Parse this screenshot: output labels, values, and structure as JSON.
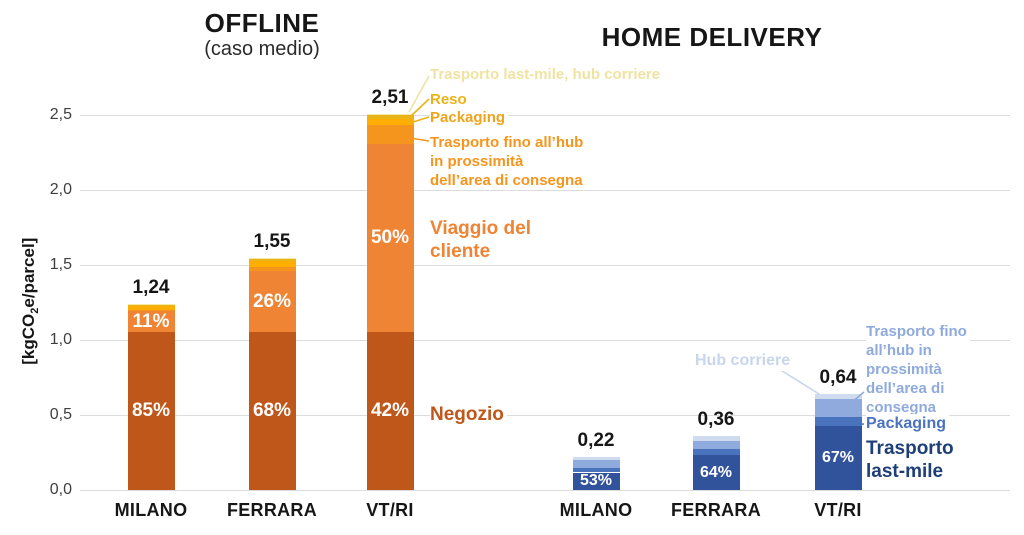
{
  "y_axis": {
    "label_prefix": "[kgCO",
    "label_sub": "2",
    "label_suffix": "e/parcel]",
    "ticks": [
      {
        "label": "2,5",
        "value": 2.5
      },
      {
        "label": "2,0",
        "value": 2.0
      },
      {
        "label": "1,5",
        "value": 1.5
      },
      {
        "label": "1,0",
        "value": 1.0
      },
      {
        "label": "0,5",
        "value": 0.5
      },
      {
        "label": "0,0",
        "value": 0.0
      }
    ]
  },
  "chart_data": {
    "type": "bar",
    "stacked": true,
    "unit": "kgCO2e/parcel",
    "ylim": [
      0,
      2.5
    ],
    "grid": true,
    "charts": [
      {
        "title": "OFFLINE",
        "subtitle": "(caso medio)",
        "categories": [
          "MILANO",
          "FERRARA",
          "VT/RI"
        ],
        "totals": [
          1.24,
          1.55,
          2.51
        ],
        "total_labels": [
          "1,24",
          "1,55",
          "2,51"
        ],
        "series": [
          {
            "name": "Negozio",
            "color": "#C0571A",
            "fractions": [
              0.85,
              0.68,
              0.42
            ],
            "pct_labels": [
              "85%",
              "68%",
              "42%"
            ]
          },
          {
            "name": "Viaggio del cliente",
            "color": "#EE8434",
            "fractions": [
              0.11,
              0.26,
              0.5
            ],
            "pct_labels": [
              "11%",
              "26%",
              "50%"
            ]
          },
          {
            "name": "Trasporto fino all’hub in prossimità dell’area di consegna",
            "color": "#F6951D",
            "fractions": [
              0.01,
              0.02,
              0.05
            ],
            "pct_labels": [
              "",
              "",
              ""
            ]
          },
          {
            "name": "Packaging",
            "color": "#FFAE00",
            "fractions": [
              0.02,
              0.025,
              0.015
            ],
            "pct_labels": [
              "",
              "",
              ""
            ]
          },
          {
            "name": "Reso",
            "color": "#E9B417",
            "fractions": [
              0.005,
              0.01,
              0.01
            ],
            "pct_labels": [
              "",
              "",
              ""
            ]
          },
          {
            "name": "Trasporto last-mile, hub corriere",
            "color": "#F5E9A8",
            "fractions": [
              0.005,
              0.005,
              0.005
            ],
            "pct_labels": [
              "",
              "",
              ""
            ]
          }
        ]
      },
      {
        "title": "HOME DELIVERY",
        "subtitle": "",
        "categories": [
          "MILANO",
          "FERRARA",
          "VT/RI"
        ],
        "totals": [
          0.22,
          0.36,
          0.64
        ],
        "total_labels": [
          "0,22",
          "0,36",
          "0,64"
        ],
        "series": [
          {
            "name": "Trasporto last-mile",
            "color": "#31539B",
            "fractions": [
              0.53,
              0.64,
              0.67
            ],
            "pct_labels": [
              "53%",
              "64%",
              "67%"
            ]
          },
          {
            "name": "Packaging",
            "color": "#4A73BE",
            "fractions": [
              0.14,
              0.12,
              0.09
            ],
            "pct_labels": [
              "",
              "",
              ""
            ]
          },
          {
            "name": "Trasporto fino all’hub in prossimità dell’area di consegna",
            "color": "#8FAADC",
            "fractions": [
              0.23,
              0.15,
              0.19
            ],
            "pct_labels": [
              "",
              "",
              ""
            ]
          },
          {
            "name": "Hub corriere",
            "color": "#CFDCF0",
            "fractions": [
              0.1,
              0.09,
              0.05
            ],
            "pct_labels": [
              "",
              "",
              ""
            ]
          }
        ]
      }
    ]
  },
  "annotations": {
    "offline": {
      "lastmile_hub": "Trasporto last-mile, hub corriere",
      "reso": "Reso",
      "packaging": "Packaging",
      "trasporto_hub_l1": "Trasporto fino all’hub",
      "trasporto_hub_l2": "in prossimità",
      "trasporto_hub_l3": "dell’area di consegna",
      "viaggio_l1": "Viaggio del",
      "viaggio_l2": "cliente",
      "negozio": "Negozio"
    },
    "home": {
      "hub_corriere": "Hub corriere",
      "trasporto_hub_l1": "Trasporto fino",
      "trasporto_hub_l2": "all’hub in",
      "trasporto_hub_l3": "prossimità",
      "trasporto_hub_l4": "dell’area di",
      "trasporto_hub_l5": "consegna",
      "packaging": "Packaging",
      "lastmile_l1": "Trasporto",
      "lastmile_l2": "last-mile"
    }
  },
  "palette": {
    "negozio": "#C0571A",
    "viaggio": "#EE8434",
    "trasporto_hub_orange": "#F6951D",
    "packaging_amber": "#F0A41C",
    "reso_gold": "#E9B417",
    "lastmile_hub_pale": "#F0E3A2",
    "hub_corriere_pale": "#C7D5ED",
    "trasporto_hub_blue": "#8FAADC",
    "packaging_blue": "#4A73BE",
    "lastmile_navy": "#1F3F77",
    "grid": "#DCDCDC",
    "bar_pct_text": "#FFFFFF"
  }
}
